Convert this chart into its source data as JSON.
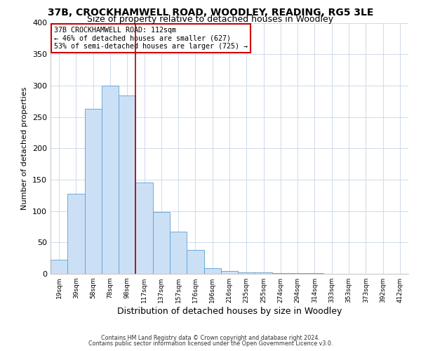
{
  "title": "37B, CROCKHAMWELL ROAD, WOODLEY, READING, RG5 3LE",
  "subtitle": "Size of property relative to detached houses in Woodley",
  "xlabel": "Distribution of detached houses by size in Woodley",
  "ylabel": "Number of detached properties",
  "bar_labels": [
    "19sqm",
    "39sqm",
    "58sqm",
    "78sqm",
    "98sqm",
    "117sqm",
    "137sqm",
    "157sqm",
    "176sqm",
    "196sqm",
    "216sqm",
    "235sqm",
    "255sqm",
    "274sqm",
    "294sqm",
    "314sqm",
    "333sqm",
    "353sqm",
    "373sqm",
    "392sqm",
    "412sqm"
  ],
  "bar_values": [
    22,
    128,
    263,
    300,
    284,
    145,
    98,
    67,
    38,
    9,
    5,
    2,
    2,
    1,
    1,
    1,
    0,
    0,
    0,
    0,
    0
  ],
  "bar_color": "#cce0f5",
  "bar_edge_color": "#5a9fd4",
  "vline_color": "#aa0000",
  "vline_x_index": 5,
  "ylim": [
    0,
    400
  ],
  "yticks": [
    0,
    50,
    100,
    150,
    200,
    250,
    300,
    350,
    400
  ],
  "annotation_title": "37B CROCKHAMWELL ROAD: 112sqm",
  "annotation_line1": "← 46% of detached houses are smaller (627)",
  "annotation_line2": "53% of semi-detached houses are larger (725) →",
  "annotation_box_color": "#ffffff",
  "annotation_box_edge": "#cc0000",
  "footer1": "Contains HM Land Registry data © Crown copyright and database right 2024.",
  "footer2": "Contains public sector information licensed under the Open Government Licence v3.0.",
  "background_color": "#ffffff",
  "grid_color": "#c8d4e8",
  "title_fontsize": 10,
  "subtitle_fontsize": 9,
  "ylabel_fontsize": 8,
  "xlabel_fontsize": 9
}
